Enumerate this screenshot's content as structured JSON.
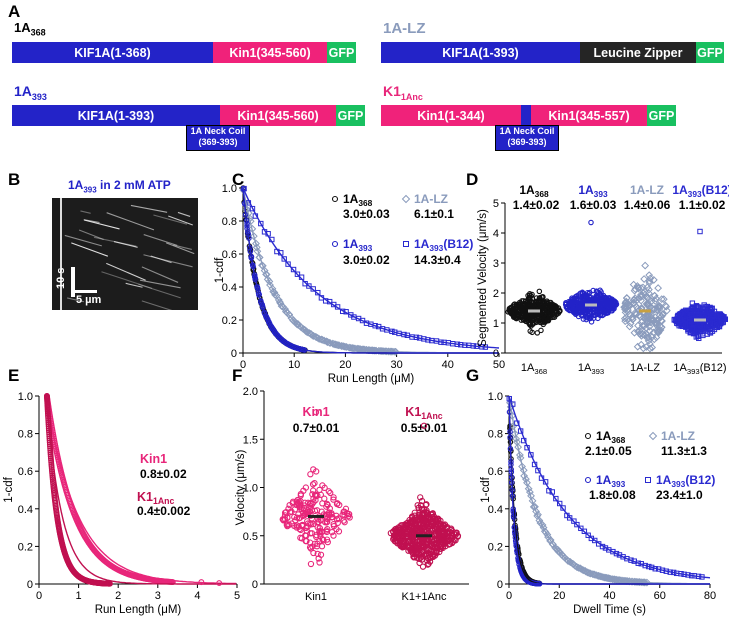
{
  "colors": {
    "kif": "#2323c8",
    "kin1": "#f0227a",
    "gfp": "#19c060",
    "lz": "#252525",
    "c368": "#111111",
    "c393": "#2323c8",
    "clz": "#8a9bbc",
    "cb12": "#2a2ad0",
    "ckin1": "#e8267a",
    "ck1anc": "#c01050"
  },
  "panelA": {
    "label": "A",
    "c368": {
      "name": "1A",
      "sub": "368",
      "kif": "KIF1A(1-368)",
      "kin": "Kin1(345-560)",
      "gfp": "GFP"
    },
    "clz": {
      "name": "1A-LZ",
      "kif": "KIF1A(1-393)",
      "lz": "Leucine Zipper",
      "gfp": "GFP"
    },
    "c393": {
      "name": "1A",
      "sub": "393",
      "kif": "KIF1A(1-393)",
      "kin": "Kin1(345-560)",
      "gfp": "GFP",
      "coil1": "1A Neck Coil",
      "coil2": "(369-393)"
    },
    "ck1": {
      "name": "K1",
      "sub": "1Anc",
      "kin_a": "Kin1(1-344)",
      "kin_b": "Kin1(345-557)",
      "gfp": "GFP",
      "coil1": "1A Neck Coil",
      "coil2": "(369-393)"
    }
  },
  "panelB": {
    "label": "B",
    "title_main": "1A",
    "title_sub": "393",
    "title_rest": " in 2 mM ATP",
    "scale_time": "10 s",
    "scale_dist": "5 µm"
  },
  "chart_data": [
    {
      "panel": "C",
      "type": "line",
      "xlabel": "Run Length (μM)",
      "ylabel": "1-cdf",
      "xlim": [
        0,
        50
      ],
      "ylim": [
        0,
        1
      ],
      "xticks": [
        0,
        10,
        20,
        30,
        40,
        50
      ],
      "yticks": [
        0,
        0.2,
        0.4,
        0.6,
        0.8,
        1.0
      ],
      "yticklabels": [
        "0",
        "0.2",
        "0.4",
        "0.6",
        "0.8",
        "1.0"
      ],
      "series": [
        {
          "name": "1A368",
          "label_main": "1A",
          "label_sub": "368",
          "value": "3.0±0.03",
          "marker": "circle",
          "color_key": "c368",
          "tau": 3.0
        },
        {
          "name": "1A-LZ",
          "label_main": "1A-LZ",
          "label_sub": "",
          "value": "6.1±0.1",
          "marker": "diamond",
          "color_key": "clz",
          "tau": 6.1
        },
        {
          "name": "1A393",
          "label_main": "1A",
          "label_sub": "393",
          "value": "3.0±0.02",
          "marker": "circle",
          "color_key": "c393",
          "tau": 3.0
        },
        {
          "name": "1A393(B12)",
          "label_main": "1A",
          "label_sub": "393",
          "label_suffix": "(B12)",
          "value": "14.3±0.4",
          "marker": "square",
          "color_key": "cb12",
          "tau": 14.3
        }
      ]
    },
    {
      "panel": "D",
      "type": "scatter",
      "ylabel": "Segmented Velocity (μm/s)",
      "ylim": [
        0,
        5
      ],
      "yticks": [
        0,
        1,
        2,
        3,
        4,
        5
      ],
      "categories": [
        {
          "main": "1A",
          "sub": "368",
          "suffix": ""
        },
        {
          "main": "1A",
          "sub": "393",
          "suffix": ""
        },
        {
          "main": "1A-LZ",
          "sub": "",
          "suffix": ""
        },
        {
          "main": "1A",
          "sub": "393",
          "suffix": "(B12)"
        }
      ],
      "series": [
        {
          "name": "1A368",
          "head_main": "1A",
          "head_sub": "368",
          "head_suffix": "",
          "value": "1.4±0.02",
          "mean": 1.4,
          "color_key": "c368",
          "marker": "circle"
        },
        {
          "name": "1A393",
          "head_main": "1A",
          "head_sub": "393",
          "head_suffix": "",
          "value": "1.6±0.03",
          "mean": 1.6,
          "color_key": "c393",
          "marker": "circle"
        },
        {
          "name": "1A-LZ",
          "head_main": "1A-LZ",
          "head_sub": "",
          "head_suffix": "",
          "value": "1.4±0.06",
          "mean": 1.4,
          "color_key": "clz",
          "marker": "diamond"
        },
        {
          "name": "1A393(B12)",
          "head_main": "1A",
          "head_sub": "393",
          "head_suffix": "(B12)",
          "value": "1.1±0.02",
          "mean": 1.1,
          "color_key": "cb12",
          "marker": "square"
        }
      ]
    },
    {
      "panel": "E",
      "type": "line",
      "xlabel": "Run Length (μM)",
      "ylabel": "1-cdf",
      "xlim": [
        0,
        5
      ],
      "ylim": [
        0,
        1
      ],
      "xticks": [
        0,
        1,
        2,
        3,
        4,
        5
      ],
      "yticks": [
        0,
        0.2,
        0.4,
        0.6,
        0.8,
        1.0
      ],
      "yticklabels": [
        "0",
        "0.2",
        "0.4",
        "0.6",
        "0.8",
        "1.0"
      ],
      "series": [
        {
          "name": "Kin1",
          "label_main": "Kin1",
          "label_sub": "",
          "value": "0.8±0.02",
          "color_key": "ckin1",
          "tau": 0.8
        },
        {
          "name": "K11Anc",
          "label_main": "K1",
          "label_sub": "1Anc",
          "value": "0.4±0.002",
          "color_key": "ck1anc",
          "tau": 0.4
        }
      ]
    },
    {
      "panel": "F",
      "type": "scatter",
      "ylabel": "Velocity (μm/s)",
      "ylim": [
        0,
        2
      ],
      "yticks": [
        0,
        0.5,
        1.0,
        1.5,
        2.0
      ],
      "yticklabels": [
        "0",
        "0.5",
        "1.0",
        "1.5",
        "2.0"
      ],
      "categories": [
        "Kin1",
        "K1+1Anc"
      ],
      "series": [
        {
          "name": "Kin1",
          "head_main": "Kin1",
          "head_sub": "",
          "value": "0.7±0.01",
          "mean": 0.7,
          "color_key": "ckin1"
        },
        {
          "name": "K11Anc",
          "head_main": "K1",
          "head_sub": "1Anc",
          "value": "0.5±0.01",
          "mean": 0.5,
          "color_key": "ck1anc"
        }
      ]
    },
    {
      "panel": "G",
      "type": "line",
      "xlabel": "Dwell Time (s)",
      "ylabel": "1-cdf",
      "xlim": [
        0,
        80
      ],
      "ylim": [
        0,
        1
      ],
      "xticks": [
        0,
        20,
        40,
        60,
        80
      ],
      "yticks": [
        0,
        0.2,
        0.4,
        0.6,
        0.8,
        1.0
      ],
      "yticklabels": [
        "0",
        "0.2",
        "0.4",
        "0.6",
        "0.8",
        "1.0"
      ],
      "series": [
        {
          "name": "1A368",
          "label_main": "1A",
          "label_sub": "368",
          "value": "2.1±0.05",
          "marker": "circle",
          "color_key": "c368",
          "tau": 2.1
        },
        {
          "name": "1A-LZ",
          "label_main": "1A-LZ",
          "label_sub": "",
          "value": "11.3±1.3",
          "marker": "diamond",
          "color_key": "clz",
          "tau": 11.3
        },
        {
          "name": "1A393",
          "label_main": "1A",
          "label_sub": "393",
          "value": "1.8±0.08",
          "marker": "circle",
          "color_key": "c393",
          "tau": 1.8
        },
        {
          "name": "1A393(B12)",
          "label_main": "1A",
          "label_sub": "393",
          "label_suffix": "(B12)",
          "value": "23.4±1.0",
          "marker": "square",
          "color_key": "cb12",
          "tau": 23.4
        }
      ]
    }
  ]
}
